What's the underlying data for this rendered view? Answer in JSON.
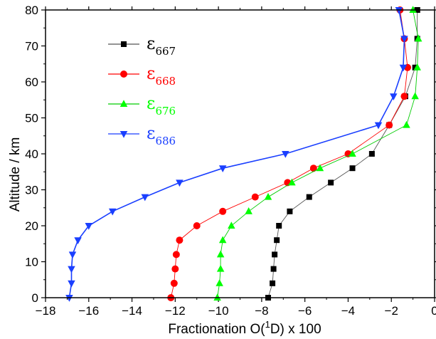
{
  "chart_data": {
    "type": "line",
    "xlabel_main": "Fractionation O(",
    "xlabel_sup": "1",
    "xlabel_tail": "D) x 100",
    "ylabel": "Altitude / km",
    "xlim": [
      -18,
      0
    ],
    "ylim": [
      0,
      80
    ],
    "xticks": [
      -18,
      -16,
      -14,
      -12,
      -10,
      -8,
      -6,
      -4,
      -2,
      0
    ],
    "yticks": [
      0,
      10,
      20,
      30,
      40,
      50,
      60,
      70,
      80
    ],
    "legend_position": "top-left",
    "series": [
      {
        "name_symbol": "ε",
        "name_sub": "667",
        "color": "#000000",
        "line_color": "#555555",
        "marker": "square",
        "x": [
          -7.7,
          -7.5,
          -7.45,
          -7.4,
          -7.3,
          -7.2,
          -6.7,
          -5.8,
          -4.8,
          -3.8,
          -2.9,
          -2.1,
          -1.35,
          -0.9,
          -0.8,
          -0.8,
          -0.8
        ],
        "y": [
          0,
          4,
          8,
          12,
          16,
          20,
          24,
          28,
          32,
          36,
          40,
          48,
          56,
          64,
          72,
          80,
          80
        ]
      },
      {
        "name_symbol": "ε",
        "name_sub": "668",
        "color": "#ff0000",
        "line_color": "#ff0000",
        "marker": "circle",
        "x": [
          -12.2,
          -12.05,
          -12.0,
          -11.95,
          -11.8,
          -11.0,
          -9.8,
          -8.3,
          -6.8,
          -5.6,
          -4.0,
          -2.1,
          -1.4,
          -1.25,
          -1.4,
          -1.6
        ],
        "y": [
          0,
          4,
          8,
          12,
          16,
          20,
          24,
          28,
          32,
          36,
          40,
          48,
          56,
          64,
          72,
          80
        ]
      },
      {
        "name_symbol": "ε",
        "name_sub": "676",
        "color": "#00ff00",
        "line_color": "#00cc00",
        "marker": "triangle-up",
        "x": [
          -10.05,
          -9.95,
          -9.9,
          -9.9,
          -9.8,
          -9.4,
          -8.6,
          -7.7,
          -6.6,
          -5.3,
          -3.8,
          -1.3,
          -0.9,
          -0.8,
          -0.75,
          -1.0
        ],
        "y": [
          0,
          4,
          8,
          12,
          16,
          20,
          24,
          28,
          32,
          36,
          40,
          48,
          56,
          64,
          72,
          80
        ]
      },
      {
        "name_symbol": "ε",
        "name_sub": "686",
        "color": "#1a3fff",
        "line_color": "#1a3fff",
        "marker": "triangle-down",
        "x": [
          -16.9,
          -16.8,
          -16.8,
          -16.75,
          -16.5,
          -16.0,
          -14.9,
          -13.4,
          -11.8,
          -9.8,
          -6.9,
          -2.6,
          -1.9,
          -1.45,
          -1.4,
          -1.65
        ],
        "y": [
          0,
          4,
          8,
          12,
          16,
          20,
          24,
          28,
          32,
          36,
          40,
          48,
          56,
          64,
          72,
          80
        ]
      }
    ]
  }
}
